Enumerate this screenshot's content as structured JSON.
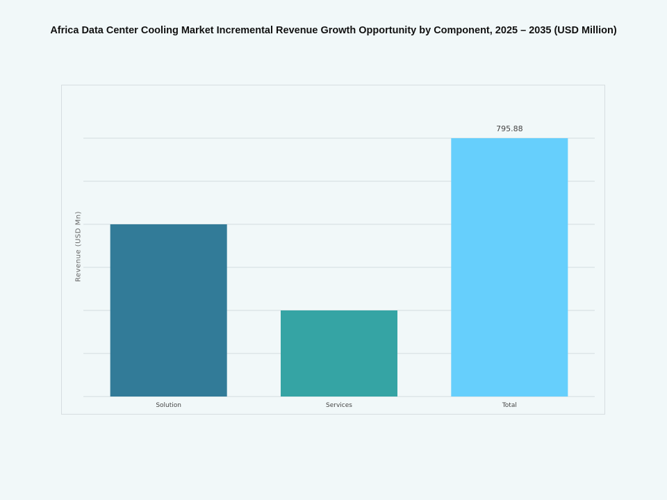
{
  "chart_data": {
    "type": "bar",
    "title": "Africa Data Center Cooling Market Incremental Revenue Growth Opportunity by Component, 2025 – 2035 (USD Million)",
    "xlabel": "",
    "ylabel": "Revenue (USD Mn)",
    "categories": [
      "Solution",
      "Services",
      "Total"
    ],
    "values": [
      530.6,
      265.3,
      795.88
    ],
    "data_labels": [
      "",
      "",
      "795.88"
    ],
    "colors": [
      "#327b98",
      "#35a4a4",
      "#66cffc"
    ],
    "ylim": [
      0,
      928.5
    ],
    "grid_step": 132.65,
    "grid": true,
    "y_tick_labels_shown": false
  }
}
